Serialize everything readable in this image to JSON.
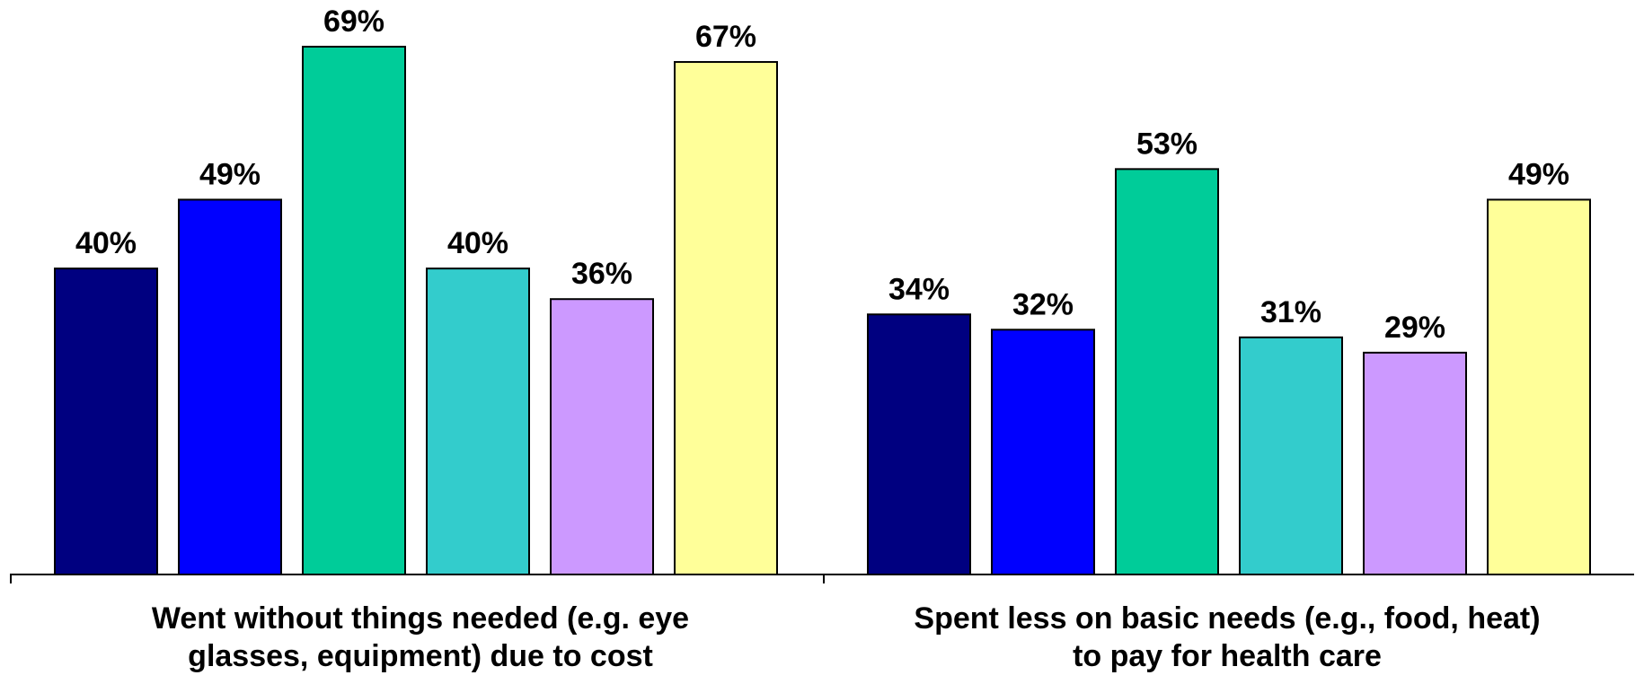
{
  "chart_data": {
    "type": "bar",
    "categories": [
      "Went without things needed (e.g. eye glasses, equipment) due to cost",
      "Spent less on basic needs (e.g., food, heat) to pay for health care"
    ],
    "category_label_lines": [
      [
        "Went without things needed (e.g. eye",
        "glasses, equipment) due to cost"
      ],
      [
        "Spent less on basic needs (e.g., food, heat)",
        "to pay for health care"
      ]
    ],
    "series": [
      {
        "values": [
          40,
          34
        ],
        "labels": [
          "40%",
          "34%"
        ],
        "color": "#000080"
      },
      {
        "values": [
          49,
          32
        ],
        "labels": [
          "49%",
          "32%"
        ],
        "color": "#0000FF"
      },
      {
        "values": [
          69,
          53
        ],
        "labels": [
          "69%",
          "53%"
        ],
        "color": "#00CC99"
      },
      {
        "values": [
          40,
          31
        ],
        "labels": [
          "40%",
          "31%"
        ],
        "color": "#33CCCC"
      },
      {
        "values": [
          36,
          29
        ],
        "labels": [
          "36%",
          "29%"
        ],
        "color": "#CC99FF"
      },
      {
        "values": [
          67,
          49
        ],
        "labels": [
          "67%",
          "49%"
        ],
        "color": "#FFFF99"
      }
    ],
    "ylim": [
      0,
      69
    ],
    "grid": false,
    "legend": "none"
  }
}
